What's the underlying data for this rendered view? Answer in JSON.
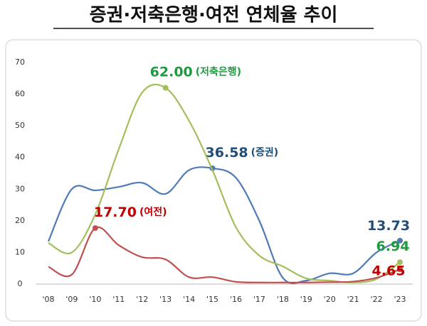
{
  "chart_data": {
    "type": "line",
    "title": "증권·저축은행·여전 연체율 추이",
    "categories": [
      "'08",
      "'09",
      "'10",
      "'11",
      "'12",
      "'13",
      "'14",
      "'15",
      "'16",
      "'17",
      "'18",
      "'19",
      "'20",
      "'21",
      "'22",
      "'23"
    ],
    "ylim": [
      0,
      70
    ],
    "yticks": [
      0,
      10,
      20,
      30,
      40,
      50,
      60,
      70
    ],
    "series": [
      {
        "name": "(증권)",
        "color": "#4f7ab8",
        "label_color": "#1f4e79",
        "values": [
          13.5,
          30,
          29.6,
          30.7,
          32,
          28.5,
          36,
          36.58,
          33.6,
          20,
          2,
          1.1,
          3.4,
          3.4,
          10,
          13.73
        ],
        "value_labels": [
          null,
          null,
          null,
          null,
          null,
          null,
          null,
          "36.58",
          null,
          null,
          null,
          null,
          null,
          null,
          null,
          "13.73"
        ]
      },
      {
        "name": "(저축은행)",
        "color": "#a3bf5c",
        "label_color": "#1f9a3f",
        "values": [
          13,
          10,
          22,
          42.6,
          60.5,
          62,
          51.6,
          36,
          18,
          9,
          5.6,
          1.8,
          1.1,
          0.5,
          1.6,
          6.94
        ],
        "value_labels": [
          null,
          null,
          null,
          null,
          null,
          "62.00",
          null,
          null,
          null,
          null,
          null,
          null,
          null,
          null,
          null,
          "6.94"
        ]
      },
      {
        "name": "(여전)",
        "color": "#c0504d",
        "label_color": "#c00000",
        "values": [
          5.5,
          3,
          17.7,
          12.3,
          8.5,
          7.8,
          2.2,
          2.2,
          0.7,
          0.5,
          0.5,
          0.5,
          0.6,
          0.8,
          2,
          4.65
        ],
        "value_labels": [
          null,
          null,
          "17.70",
          null,
          null,
          null,
          null,
          null,
          null,
          null,
          null,
          null,
          null,
          null,
          null,
          "4.65"
        ]
      }
    ]
  }
}
